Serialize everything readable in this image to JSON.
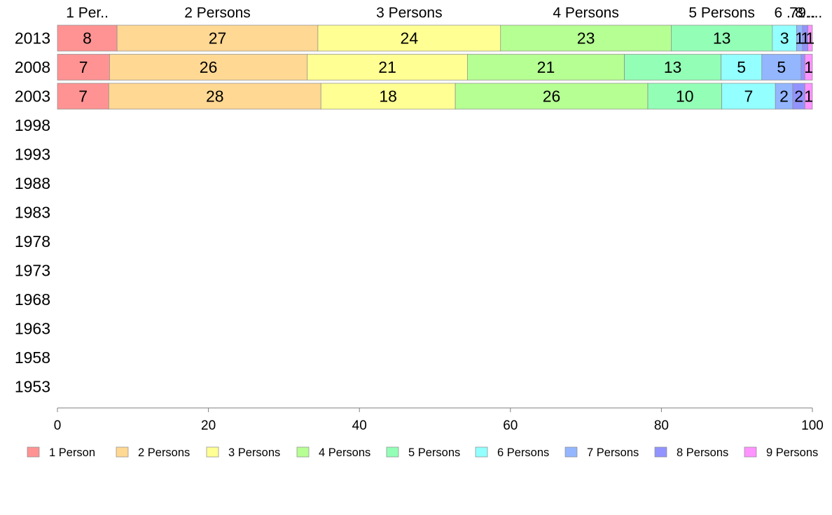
{
  "chart_data": {
    "type": "bar",
    "orientation": "horizontal",
    "stacked": true,
    "title": "",
    "xlabel": "",
    "ylabel": "",
    "xlim": [
      0,
      100
    ],
    "x_ticks": [
      0,
      20,
      40,
      60,
      80,
      100
    ],
    "grid": false,
    "legend_position": "bottom",
    "categories": [
      "2013",
      "2008",
      "2003",
      "1998",
      "1993",
      "1988",
      "1983",
      "1978",
      "1973",
      "1968",
      "1963",
      "1958",
      "1953"
    ],
    "series": [
      {
        "name": "1 Person",
        "color": "#ff9393",
        "values": [
          7.9,
          6.9,
          6.8,
          null,
          null,
          null,
          null,
          null,
          null,
          null,
          null,
          null,
          null
        ]
      },
      {
        "name": "2 Persons",
        "color": "#ffd893",
        "values": [
          26.6,
          26.2,
          28.1,
          null,
          null,
          null,
          null,
          null,
          null,
          null,
          null,
          null,
          null
        ]
      },
      {
        "name": "3 Persons",
        "color": "#ffff93",
        "values": [
          24.2,
          21.2,
          17.8,
          null,
          null,
          null,
          null,
          null,
          null,
          null,
          null,
          null,
          null
        ]
      },
      {
        "name": "4 Persons",
        "color": "#b6ff93",
        "values": [
          22.6,
          20.8,
          25.5,
          null,
          null,
          null,
          null,
          null,
          null,
          null,
          null,
          null,
          null
        ]
      },
      {
        "name": "5 Persons",
        "color": "#93ffb6",
        "values": [
          13.4,
          12.8,
          9.8,
          null,
          null,
          null,
          null,
          null,
          null,
          null,
          null,
          null,
          null
        ]
      },
      {
        "name": "6 Persons",
        "color": "#93ffff",
        "values": [
          3.2,
          5.4,
          7.1,
          null,
          null,
          null,
          null,
          null,
          null,
          null,
          null,
          null,
          null
        ]
      },
      {
        "name": "7 Persons",
        "color": "#93b6ff",
        "values": [
          0.8,
          5.2,
          2.3,
          null,
          null,
          null,
          null,
          null,
          null,
          null,
          null,
          null,
          null
        ]
      },
      {
        "name": "8 Persons",
        "color": "#9393ff",
        "values": [
          0.7,
          0.5,
          1.6,
          null,
          null,
          null,
          null,
          null,
          null,
          null,
          null,
          null,
          null
        ]
      },
      {
        "name": "9 Persons",
        "color": "#ff93ff",
        "values": [
          0.6,
          1.0,
          1.0,
          null,
          null,
          null,
          null,
          null,
          null,
          null,
          null,
          null,
          null
        ]
      }
    ],
    "data_labels": [
      [
        "8",
        "27",
        "24",
        "23",
        "13",
        "3",
        "1",
        "1",
        "1"
      ],
      [
        "7",
        "26",
        "21",
        "21",
        "13",
        "5",
        "5",
        "",
        "1"
      ],
      [
        "7",
        "28",
        "18",
        "26",
        "10",
        "7",
        "2",
        "2",
        "1"
      ]
    ],
    "top_labels": [
      "1 Per..",
      "2 Persons",
      "3 Persons",
      "4 Persons",
      "5 Persons",
      "6 ..",
      "7 ..",
      "8 ..",
      "9 ..."
    ]
  }
}
